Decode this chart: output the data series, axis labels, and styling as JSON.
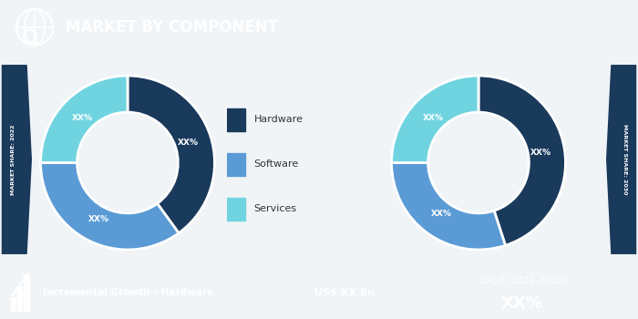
{
  "title": "MARKET BY COMPONENT",
  "header_bg": "#1b6a7b",
  "header_text_color": "#ffffff",
  "chart_bg": "#f0f4f7",
  "footer_bg_left": "#1b6a7b",
  "footer_bg_mid": "#5bbcd8",
  "footer_bg_right": "#1b6a7b",
  "side_bracket_bg": "#1a3a5c",
  "pie1_values": [
    40,
    35,
    25
  ],
  "pie2_values": [
    45,
    30,
    25
  ],
  "pie_colors": [
    "#1a3a5c",
    "#5b9bd5",
    "#70d4e0"
  ],
  "legend_labels": [
    "Hardware",
    "Software",
    "Services"
  ],
  "left_label": "MARKET SHARE: 2022",
  "right_label": "MARKET SHARE: 2030",
  "footer_left": "Incremental Growth – Hardware",
  "footer_mid": "US$ XX Bn",
  "footer_right": "CAGR (2022–2030)",
  "footer_right_value": "XX%"
}
